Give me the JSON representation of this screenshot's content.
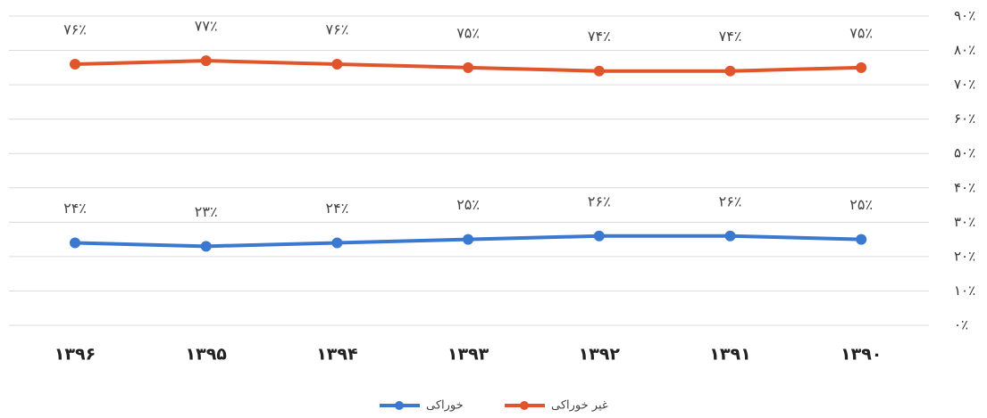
{
  "chart_data": {
    "type": "line",
    "categories": [
      "۱۳۹۶",
      "۱۳۹۵",
      "۱۳۹۴",
      "۱۳۹۳",
      "۱۳۹۲",
      "۱۳۹۱",
      "۱۳۹۰"
    ],
    "series": [
      {
        "name": "خوراکی",
        "color": "#3b78d0",
        "values": [
          24,
          23,
          24,
          25,
          26,
          26,
          25
        ],
        "value_labels": [
          "۲۴٪",
          "۲۳٪",
          "۲۴٪",
          "۲۵٪",
          "۲۶٪",
          "۲۶٪",
          "۲۵٪"
        ]
      },
      {
        "name": "غیر خوراکی",
        "color": "#e0552b",
        "values": [
          76,
          77,
          76,
          75,
          74,
          74,
          75
        ],
        "value_labels": [
          "۷۶٪",
          "۷۷٪",
          "۷۶٪",
          "۷۵٪",
          "۷۴٪",
          "۷۴٪",
          "۷۵٪"
        ]
      }
    ],
    "ylim": [
      0,
      90
    ],
    "yticks": [
      {
        "value": 0,
        "label": "۰٪"
      },
      {
        "value": 10,
        "label": "۱۰٪"
      },
      {
        "value": 20,
        "label": "۲۰٪"
      },
      {
        "value": 30,
        "label": "۳۰٪"
      },
      {
        "value": 40,
        "label": "۴۰٪"
      },
      {
        "value": 50,
        "label": "۵۰٪"
      },
      {
        "value": 60,
        "label": "۶۰٪"
      },
      {
        "value": 70,
        "label": "۷۰٪"
      },
      {
        "value": 80,
        "label": "۸۰٪"
      },
      {
        "value": 90,
        "label": "۹۰٪"
      }
    ],
    "grid": true,
    "legend": "bottom"
  }
}
